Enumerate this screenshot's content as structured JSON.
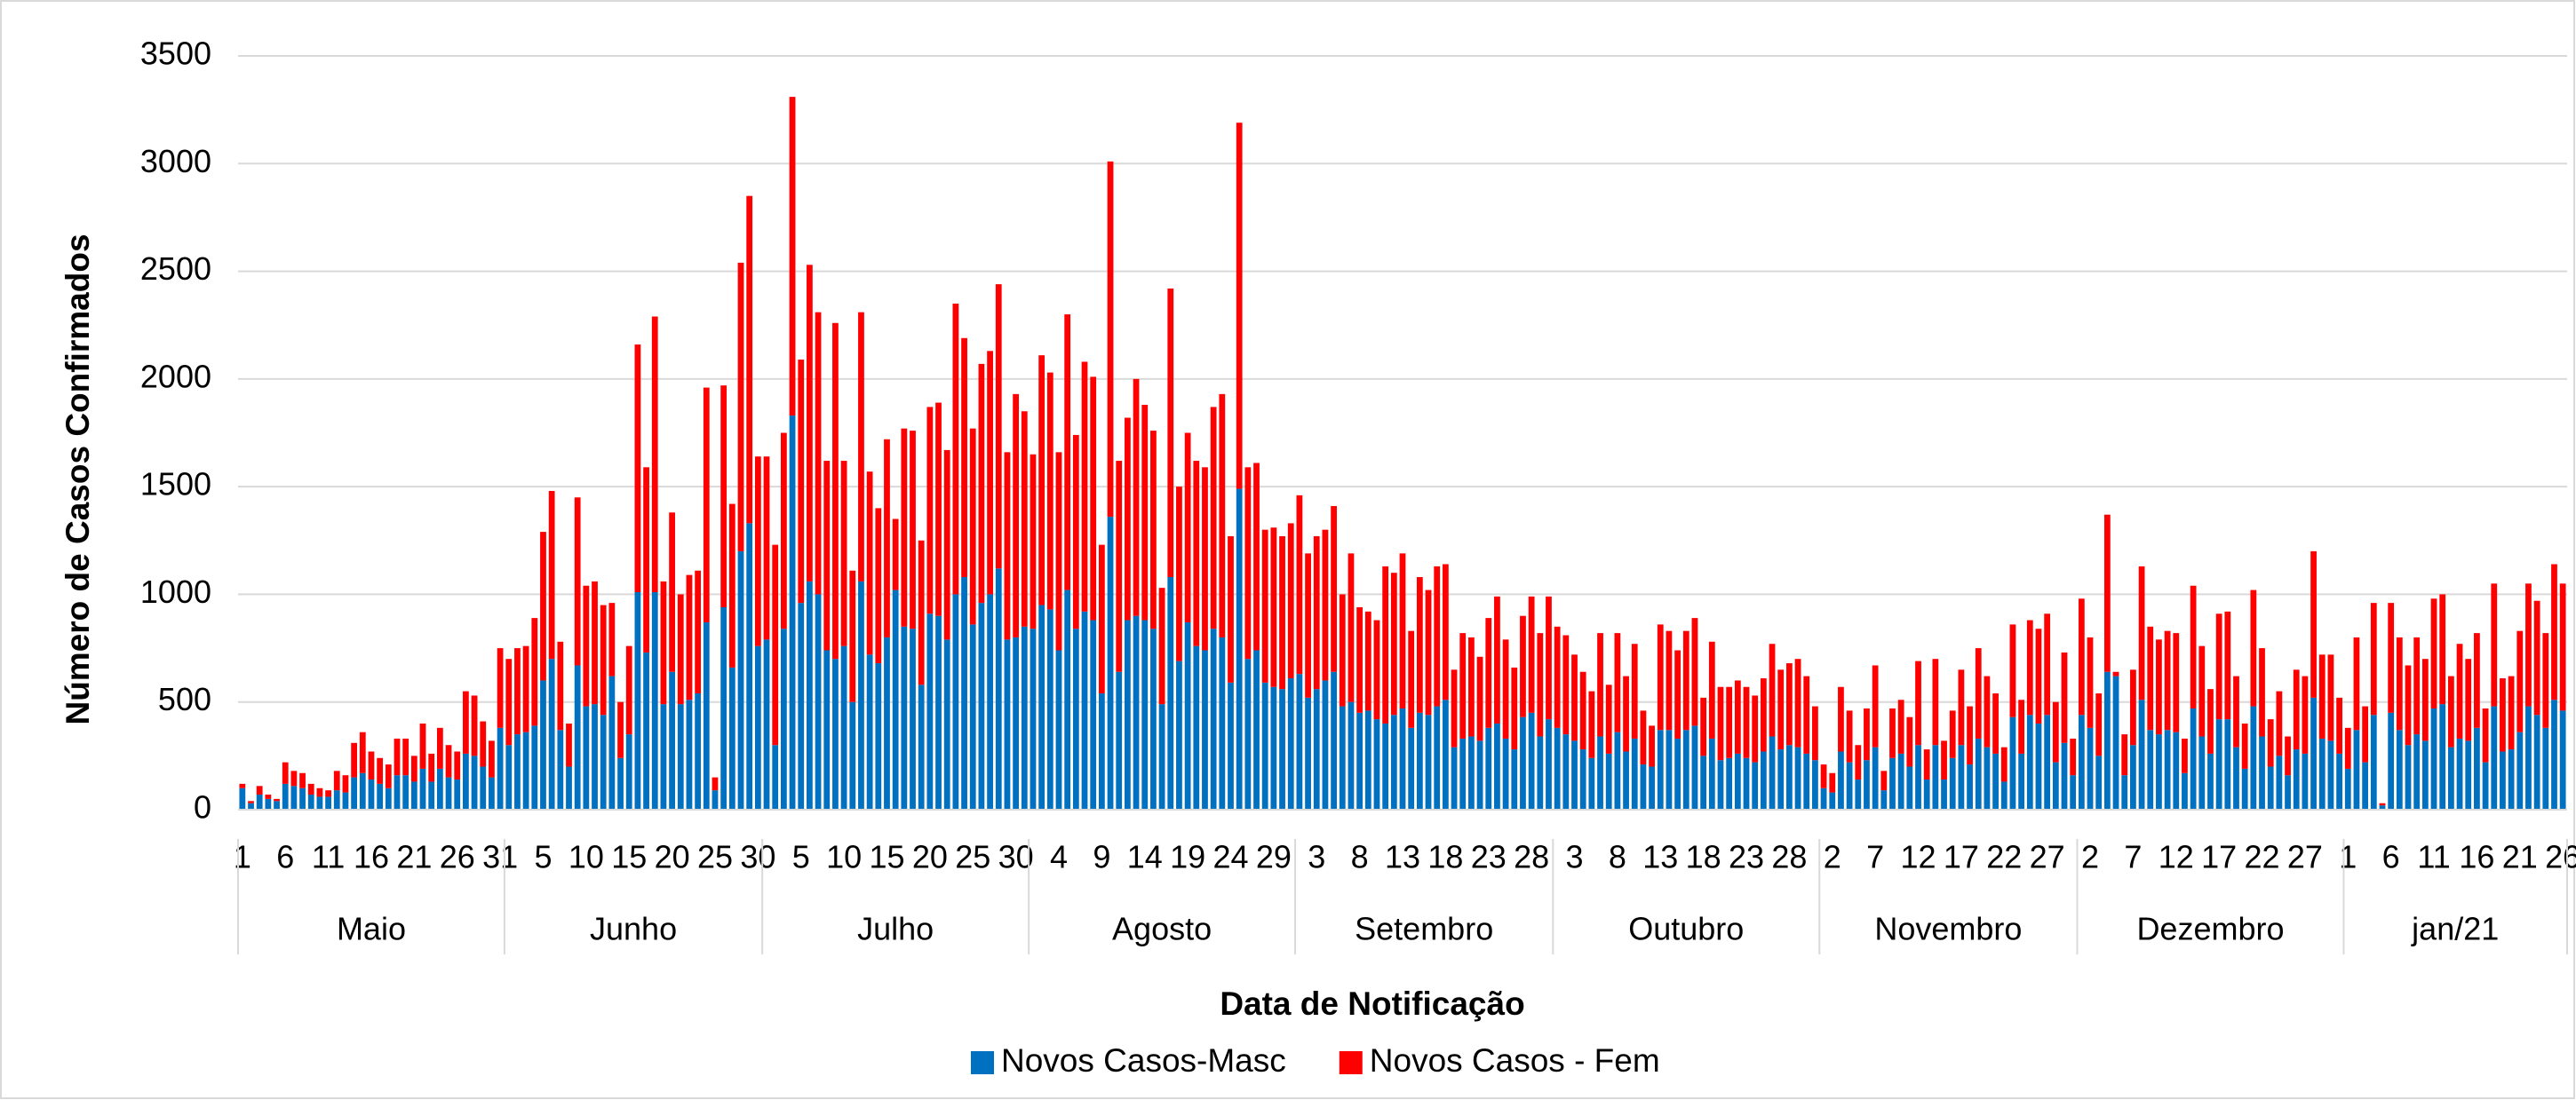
{
  "chart_data": {
    "type": "stacked_bar",
    "y_label": "Número de Casos Confirmados",
    "x_label": "Data de Notificação",
    "ylim": [
      0,
      3500
    ],
    "yticks": [
      0,
      500,
      1000,
      1500,
      2000,
      2500,
      3000,
      3500
    ],
    "grid": true,
    "legend": "bottom",
    "groups": [
      {
        "label": "Maio",
        "count": 31
      },
      {
        "label": "Junho",
        "count": 30
      },
      {
        "label": "Julho",
        "count": 31
      },
      {
        "label": "Agosto",
        "count": 31
      },
      {
        "label": "Setembro",
        "count": 30
      },
      {
        "label": "Outubro",
        "count": 31
      },
      {
        "label": "Novembro",
        "count": 30
      },
      {
        "label": "Dezembro",
        "count": 31
      },
      {
        "label": "jan/21",
        "count": 26
      }
    ],
    "categories": [
      "1",
      null,
      null,
      null,
      null,
      "6",
      null,
      null,
      null,
      null,
      "11",
      null,
      null,
      null,
      null,
      "16",
      null,
      null,
      null,
      null,
      "21",
      null,
      null,
      null,
      null,
      "26",
      null,
      null,
      null,
      null,
      "31",
      null,
      null,
      null,
      null,
      "5",
      null,
      null,
      null,
      null,
      "10",
      null,
      null,
      null,
      null,
      "15",
      null,
      null,
      null,
      null,
      "20",
      null,
      null,
      null,
      null,
      "25",
      null,
      null,
      null,
      null,
      "30",
      null,
      null,
      null,
      null,
      "5",
      null,
      null,
      null,
      null,
      "10",
      null,
      null,
      null,
      null,
      "15",
      null,
      null,
      null,
      null,
      "20",
      null,
      null,
      null,
      null,
      "25",
      null,
      null,
      null,
      null,
      "30",
      null,
      null,
      null,
      null,
      "4",
      null,
      null,
      null,
      null,
      "9",
      null,
      null,
      null,
      null,
      "14",
      null,
      null,
      null,
      null,
      "19",
      null,
      null,
      null,
      null,
      "24",
      null,
      null,
      null,
      null,
      "29",
      null,
      null,
      null,
      null,
      "3",
      null,
      null,
      null,
      null,
      "8",
      null,
      null,
      null,
      null,
      "13",
      null,
      null,
      null,
      null,
      "18",
      null,
      null,
      null,
      null,
      "23",
      null,
      null,
      null,
      null,
      "28",
      null,
      null,
      null,
      null,
      "3",
      null,
      null,
      null,
      null,
      "8",
      null,
      null,
      null,
      null,
      "13",
      null,
      null,
      null,
      null,
      "18",
      null,
      null,
      null,
      null,
      "23",
      null,
      null,
      null,
      null,
      "28",
      null,
      null,
      null,
      null,
      "2",
      null,
      null,
      null,
      null,
      "7",
      null,
      null,
      null,
      null,
      "12",
      null,
      null,
      null,
      null,
      "17",
      null,
      null,
      null,
      null,
      "22",
      null,
      null,
      null,
      null,
      "27",
      null,
      null,
      null,
      null,
      "2",
      null,
      null,
      null,
      null,
      "7",
      null,
      null,
      null,
      null,
      "12",
      null,
      null,
      null,
      null,
      "17",
      null,
      null,
      null,
      null,
      "22",
      null,
      null,
      null,
      null,
      "27",
      null,
      null,
      null,
      null,
      "1",
      null,
      null,
      null,
      null,
      "6",
      null,
      null,
      null,
      null,
      "11",
      null,
      null,
      null,
      null,
      "16",
      null,
      null,
      null,
      null,
      "21",
      null,
      null,
      null,
      null,
      "26"
    ],
    "series": [
      {
        "name": "Novos Casos-Masc",
        "color": "#0070c0",
        "values": [
          100,
          30,
          70,
          50,
          40,
          120,
          110,
          100,
          70,
          60,
          60,
          90,
          80,
          150,
          170,
          140,
          120,
          100,
          160,
          160,
          130,
          190,
          130,
          190,
          150,
          140,
          260,
          250,
          200,
          150,
          380,
          300,
          350,
          360,
          390,
          600,
          700,
          370,
          200,
          670,
          480,
          490,
          440,
          620,
          240,
          350,
          1010,
          730,
          1010,
          490,
          640,
          490,
          510,
          540,
          870,
          90,
          940,
          660,
          1200,
          1330,
          760,
          790,
          300,
          840,
          1830,
          960,
          1060,
          1000,
          740,
          700,
          760,
          500,
          1060,
          720,
          680,
          800,
          1020,
          850,
          840,
          580,
          910,
          900,
          790,
          1000,
          1080,
          860,
          960,
          1000,
          1120,
          790,
          800,
          850,
          840,
          950,
          930,
          740,
          1020,
          840,
          920,
          880,
          540,
          1360,
          640,
          880,
          900,
          880,
          840,
          490,
          1080,
          690,
          870,
          760,
          740,
          840,
          800,
          590,
          1490,
          700,
          740,
          590,
          570,
          560,
          610,
          630,
          520,
          560,
          600,
          640,
          480,
          500,
          450,
          460,
          420,
          400,
          440,
          470,
          380,
          450,
          440,
          480,
          510,
          290,
          330,
          340,
          320,
          380,
          400,
          330,
          280,
          430,
          450,
          340,
          420,
          380,
          350,
          320,
          280,
          240,
          340,
          260,
          360,
          270,
          330,
          210,
          200,
          370,
          370,
          330,
          370,
          390,
          250,
          330,
          230,
          240,
          260,
          240,
          220,
          270,
          340,
          280,
          300,
          290,
          260,
          230,
          100,
          80,
          270,
          220,
          140,
          230,
          290,
          90,
          240,
          260,
          200,
          300,
          140,
          300,
          140,
          240,
          300,
          210,
          330,
          290,
          260,
          130,
          430,
          260,
          440,
          400,
          440,
          220,
          310,
          160,
          440,
          380,
          250,
          640,
          620,
          160,
          300,
          510,
          370,
          350,
          370,
          360,
          170,
          470,
          340,
          260,
          420,
          420,
          290,
          190,
          480,
          340,
          200,
          250,
          160,
          280,
          260,
          520,
          330,
          320,
          260,
          190,
          370,
          220,
          440,
          20,
          450,
          370,
          300,
          350,
          320,
          470,
          490,
          290,
          330,
          320,
          380,
          220,
          480,
          270,
          280,
          360,
          480,
          440,
          380,
          510,
          460
        ]
      },
      {
        "name": "Novos Casos - Fem",
        "color": "#ff0000",
        "values": [
          20,
          10,
          40,
          20,
          10,
          100,
          70,
          70,
          50,
          40,
          30,
          90,
          80,
          160,
          190,
          130,
          120,
          110,
          170,
          170,
          120,
          210,
          130,
          190,
          150,
          130,
          290,
          280,
          210,
          170,
          370,
          400,
          400,
          400,
          500,
          690,
          780,
          410,
          200,
          780,
          560,
          570,
          510,
          340,
          260,
          410,
          1150,
          860,
          1280,
          570,
          740,
          510,
          580,
          570,
          1090,
          60,
          1030,
          760,
          1340,
          1520,
          880,
          850,
          930,
          910,
          1480,
          1130,
          1470,
          1310,
          880,
          1560,
          860,
          610,
          1250,
          850,
          720,
          920,
          330,
          920,
          920,
          670,
          960,
          990,
          880,
          1350,
          1110,
          910,
          1110,
          1130,
          1320,
          870,
          1130,
          1000,
          810,
          1160,
          1100,
          920,
          1280,
          900,
          1160,
          1130,
          690,
          1650,
          980,
          940,
          1100,
          1000,
          920,
          540,
          1340,
          810,
          880,
          860,
          850,
          1030,
          1130,
          680,
          1700,
          890,
          870,
          710,
          740,
          710,
          720,
          830,
          670,
          710,
          700,
          770,
          520,
          690,
          490,
          460,
          460,
          730,
          660,
          720,
          450,
          630,
          580,
          650,
          630,
          360,
          490,
          460,
          390,
          510,
          590,
          460,
          380,
          470,
          540,
          480,
          570,
          470,
          460,
          400,
          360,
          310,
          480,
          320,
          460,
          350,
          440,
          250,
          190,
          490,
          460,
          410,
          460,
          500,
          270,
          450,
          340,
          330,
          340,
          330,
          310,
          340,
          430,
          370,
          380,
          410,
          360,
          250,
          110,
          90,
          300,
          240,
          160,
          240,
          380,
          90,
          230,
          250,
          230,
          390,
          140,
          400,
          180,
          220,
          350,
          270,
          420,
          330,
          280,
          160,
          430,
          250,
          440,
          440,
          470,
          280,
          420,
          170,
          540,
          420,
          290,
          730,
          20,
          190,
          350,
          620,
          480,
          440,
          460,
          460,
          160,
          570,
          420,
          300,
          490,
          500,
          330,
          210,
          540,
          410,
          220,
          300,
          180,
          370,
          360,
          680,
          390,
          400,
          260,
          190,
          430,
          260,
          520,
          10,
          510,
          430,
          370,
          450,
          380,
          510,
          510,
          330,
          440,
          380,
          440,
          250,
          570,
          340,
          340,
          470,
          570,
          530,
          440,
          630,
          590
        ]
      }
    ]
  }
}
